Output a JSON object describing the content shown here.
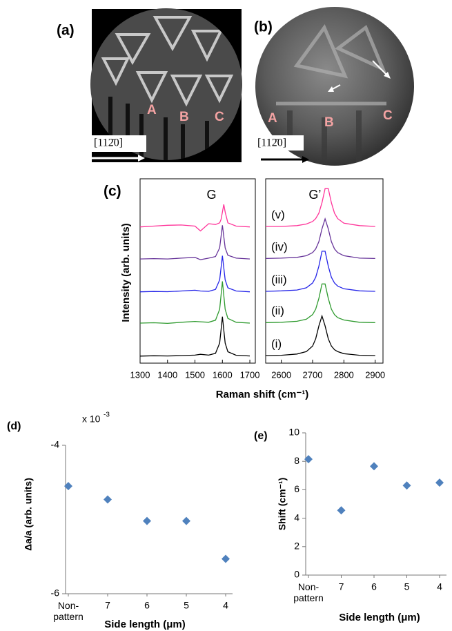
{
  "images": [
    {
      "panel": "(a)",
      "labels": [
        "A",
        "B",
        "C"
      ],
      "direction": "[112̄0]"
    },
    {
      "panel": "(b)",
      "labels": [
        "A",
        "B",
        "C"
      ],
      "direction": "[112̄0]"
    }
  ],
  "chart_data": [
    {
      "type": "line",
      "panel": "(c)",
      "x_label": "Raman shift (cm⁻¹)",
      "y_label": "Intensity (arb. units)",
      "ylim": [
        0,
        11.5
      ],
      "series": [
        {
          "name": "(i)",
          "color": "#000000"
        },
        {
          "name": "(ii)",
          "color": "#2e9a2e"
        },
        {
          "name": "(iii)",
          "color": "#2424e8"
        },
        {
          "name": "(iv)",
          "color": "#663399"
        },
        {
          "name": "(v)",
          "color": "#ff3399"
        }
      ],
      "subplots": [
        {
          "annotation": "G",
          "xlim": [
            1300,
            1720
          ],
          "xticks": [
            1300,
            1400,
            1500,
            1600,
            1700
          ],
          "x": [
            1300,
            1350,
            1400,
            1450,
            1500,
            1520,
            1550,
            1575,
            1590,
            1595,
            1600,
            1605,
            1610,
            1620,
            1650,
            1700
          ],
          "values": [
            [
              0.44,
              0.46,
              0.45,
              0.47,
              0.5,
              0.55,
              0.5,
              0.61,
              1.25,
              2.06,
              2.9,
              2.06,
              1.25,
              0.71,
              0.49,
              0.45
            ],
            [
              2.5,
              2.52,
              2.48,
              2.55,
              2.6,
              2.58,
              2.55,
              2.68,
              3.36,
              4.22,
              5.1,
              4.22,
              3.36,
              2.79,
              2.55,
              2.5
            ],
            [
              4.45,
              4.47,
              4.46,
              4.5,
              4.55,
              4.5,
              4.48,
              4.6,
              5.19,
              5.94,
              6.7,
              5.94,
              5.19,
              4.7,
              4.5,
              4.45
            ],
            [
              6.5,
              6.52,
              6.5,
              6.55,
              6.6,
              6.45,
              6.55,
              6.65,
              7.19,
              7.89,
              8.6,
              7.89,
              7.19,
              6.73,
              6.55,
              6.5
            ],
            [
              8.5,
              8.55,
              8.6,
              8.62,
              8.55,
              8.25,
              8.7,
              8.65,
              8.75,
              8.96,
              9.42,
              9.9,
              9.42,
              8.75,
              8.55,
              8.5
            ]
          ]
        },
        {
          "annotation": "G’",
          "xlim": [
            2550,
            2925
          ],
          "xticks": [
            2600,
            2700,
            2800,
            2900
          ],
          "x": [
            2550,
            2600,
            2650,
            2680,
            2700,
            2710,
            2720,
            2730,
            2740,
            2750,
            2760,
            2770,
            2780,
            2800,
            2850,
            2900
          ],
          "values": [
            [
              0.47,
              0.49,
              0.57,
              0.72,
              1.07,
              1.52,
              2.32,
              2.94,
              2.32,
              1.52,
              1.07,
              0.84,
              0.72,
              0.59,
              0.49,
              0.47
            ],
            [
              2.53,
              2.55,
              2.61,
              2.74,
              3.03,
              3.37,
              4.04,
              4.94,
              4.94,
              4.04,
              3.37,
              3.03,
              2.84,
              2.69,
              2.55,
              2.53
            ],
            [
              4.48,
              4.51,
              4.56,
              4.7,
              5.0,
              5.36,
              6.05,
              6.98,
              6.98,
              6.05,
              5.36,
              5.0,
              4.81,
              4.64,
              4.51,
              4.48
            ],
            [
              6.53,
              6.55,
              6.6,
              6.7,
              6.9,
              7.13,
              7.58,
              8.38,
              9.0,
              8.38,
              7.58,
              7.13,
              6.9,
              6.7,
              6.55,
              6.53
            ],
            [
              8.53,
              8.53,
              8.58,
              8.68,
              8.84,
              9.02,
              9.36,
              10.01,
              10.89,
              10.89,
              10.01,
              9.36,
              9.02,
              8.73,
              8.58,
              8.53
            ]
          ]
        }
      ]
    },
    {
      "type": "scatter",
      "panel": "(d)",
      "multiplier": {
        "base": "x 10",
        "exponent": "-3"
      },
      "y_label": "Δa/a (arb. units)",
      "x_label": "Side length (μm)",
      "categories": [
        "Non-pattern",
        "7",
        "6",
        "5",
        "4"
      ],
      "values": [
        -4.55,
        -4.73,
        -5.02,
        -5.02,
        -5.53
      ],
      "color": "#4f81bd",
      "ylim": [
        -6,
        -4
      ],
      "yticks": [
        -6,
        -4
      ]
    },
    {
      "type": "scatter",
      "panel": "(e)",
      "y_label": "Shift (cm⁻¹)",
      "x_label": "Side length (μm)",
      "categories": [
        "Non-pattern",
        "7",
        "6",
        "5",
        "4"
      ],
      "values": [
        8.15,
        4.55,
        7.65,
        6.3,
        6.5
      ],
      "color": "#4f81bd",
      "ylim": [
        0,
        10
      ],
      "yticks": [
        0,
        2,
        4,
        6,
        8,
        10
      ]
    }
  ]
}
